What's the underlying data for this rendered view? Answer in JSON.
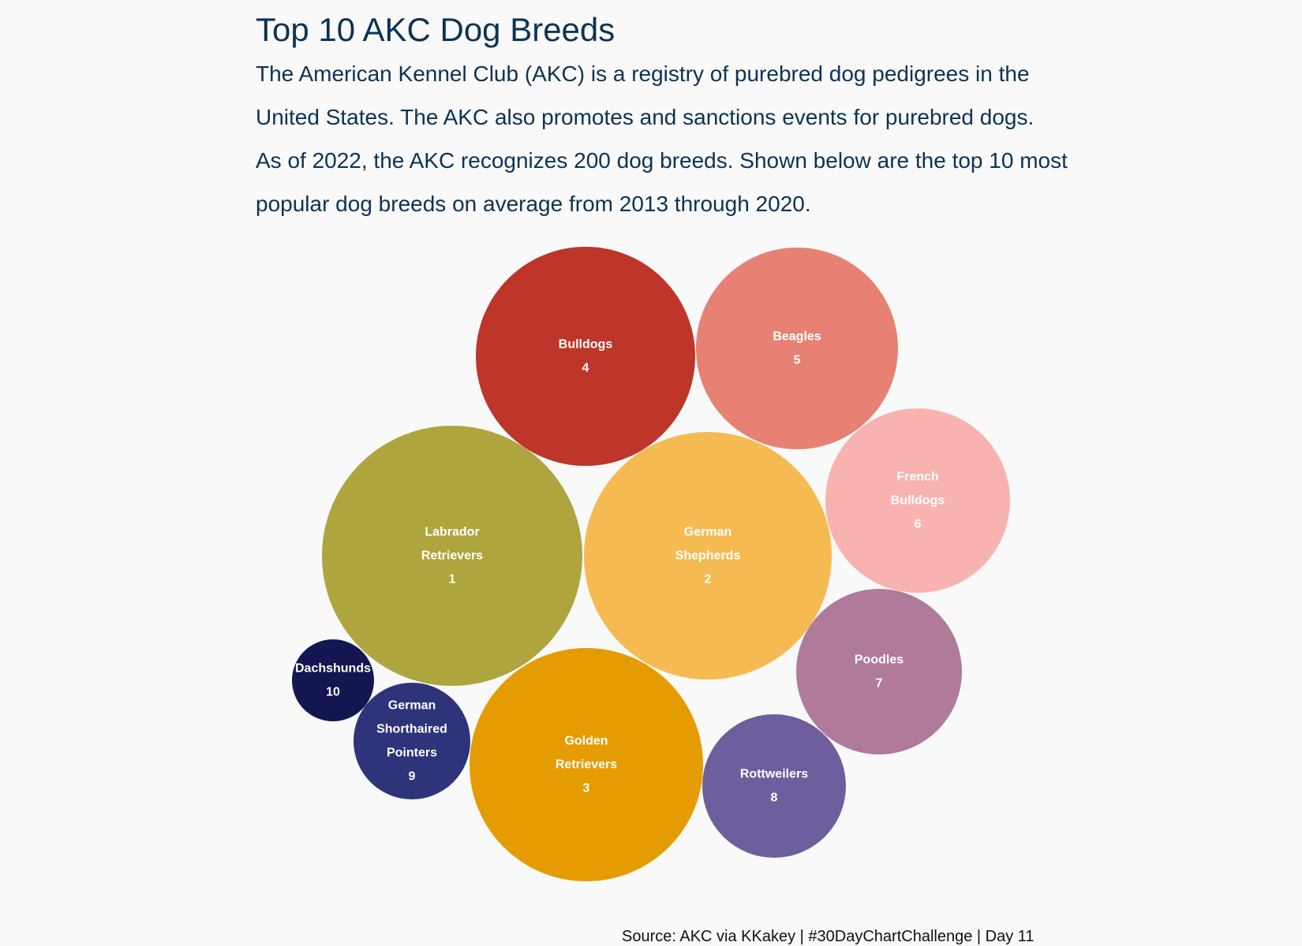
{
  "title": "Top 10 AKC Dog Breeds",
  "subtitle_lines": [
    "The American Kennel Club (AKC) is a registry of purebred dog pedigrees in the",
    "United States. The AKC also promotes and sanctions events for purebred dogs.",
    "As of 2022, the AKC recognizes 200 dog breeds. Shown below are the top 10 most",
    "popular dog breeds on average from 2013 through 2020."
  ],
  "caption": "Source: AKC via KKakey | #30DayChartChallenge | Day 11",
  "chart_data": {
    "type": "bubble",
    "size_encodes": "popularity (rank 1 = largest)",
    "items": [
      {
        "name_lines": [
          "Labrador",
          "Retrievers"
        ],
        "rank": 1,
        "color": "#afa53e"
      },
      {
        "name_lines": [
          "German",
          "Shepherds"
        ],
        "rank": 2,
        "color": "#f5bb52"
      },
      {
        "name_lines": [
          "Golden",
          "Retrievers"
        ],
        "rank": 3,
        "color": "#e59c02"
      },
      {
        "name_lines": [
          "Bulldogs"
        ],
        "rank": 4,
        "color": "#bd3629"
      },
      {
        "name_lines": [
          "Beagles"
        ],
        "rank": 5,
        "color": "#e68174"
      },
      {
        "name_lines": [
          "French",
          "Bulldogs"
        ],
        "rank": 6,
        "color": "#f8b3b0"
      },
      {
        "name_lines": [
          "Poodles"
        ],
        "rank": 7,
        "color": "#b07a9b"
      },
      {
        "name_lines": [
          "Rottweilers"
        ],
        "rank": 8,
        "color": "#6e5e9e"
      },
      {
        "name_lines": [
          "German",
          "Shorthaired",
          "Pointers"
        ],
        "rank": 9,
        "color": "#2e337a"
      },
      {
        "name_lines": [
          "Dachshunds"
        ],
        "rank": 10,
        "color": "#141652"
      }
    ]
  }
}
